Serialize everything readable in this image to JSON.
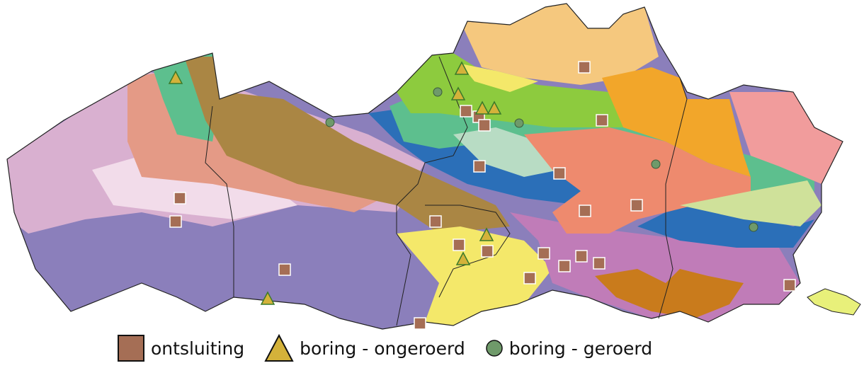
{
  "legend": {
    "items": [
      {
        "label": "ontsluiting",
        "symbol": "square",
        "color": "#a56e55"
      },
      {
        "label": "boring - ongeroerd",
        "symbol": "triangle",
        "color": "#d4b23a"
      },
      {
        "label": "boring - geroerd",
        "symbol": "circle",
        "color": "#6f9a6a"
      }
    ]
  },
  "map": {
    "colors": {
      "purple": "#8b7fbb",
      "light_pink": "#d9b0d0",
      "pale_pink": "#f2dcea",
      "salmon": "#e49a86",
      "olive_brown": "#aa8644",
      "green_teal": "#5dbf8e",
      "lime": "#8dcb3e",
      "dark_blue": "#2b6fb8",
      "pale_green": "#b8dcc4",
      "coral": "#ee8a6e",
      "light_orange": "#f5c87e",
      "orange": "#f2a62a",
      "pink_red": "#f19c9c",
      "pale_lime": "#cfe19a",
      "yellow": "#f4e86a",
      "mauve": "#c07cb8",
      "brown_orange": "#c97b1c",
      "border": "#222222"
    }
  }
}
